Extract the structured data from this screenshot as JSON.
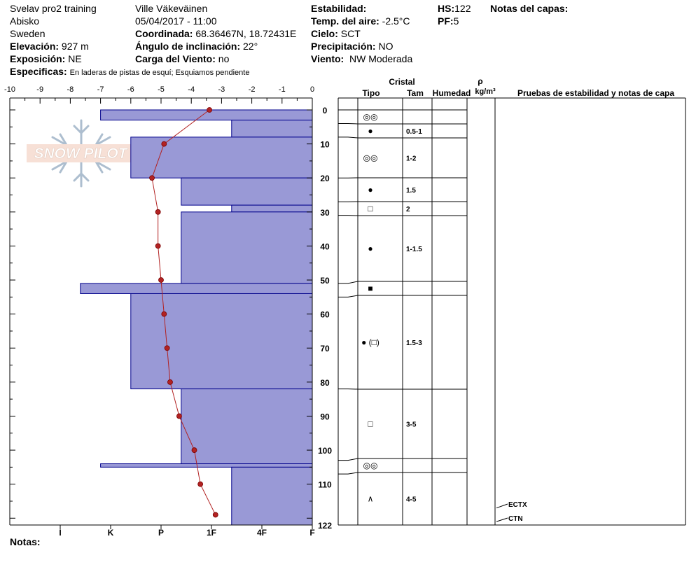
{
  "header": {
    "col1": [
      "Svelav pro2 training",
      "Abisko",
      "Sweden"
    ],
    "observer": "Ville Väkeväinen",
    "datetime": "05/04/2017 - 11:00",
    "elevation_label": "Elevación:",
    "elevation": "927 m",
    "aspect_label": "Exposición:",
    "aspect": "NE",
    "specifics_label": "Especificas:",
    "specifics": "En laderas de pistas de esquí; Esquiamos pendiente",
    "coord_label": "Coordinada:",
    "coord": "68.36467N, 18.72431E",
    "slope_label": "Ángulo de inclinación:",
    "slope": "22°",
    "wind_load_label": "Carga del Viento:",
    "wind_load": "no",
    "stability_label": "Estabilidad:",
    "air_temp_label": "Temp. del aire:",
    "air_temp": "-2.5°C",
    "sky_label": "Cielo:",
    "sky": "SCT",
    "precip_label": "Precipitación:",
    "precip": "NO",
    "wind_label": "Viento:",
    "wind": "NW Moderada",
    "hs_label": "HS:",
    "hs": "122",
    "pf_label": "PF:",
    "pf": "5",
    "layer_notes_label": "Notas del capas:"
  },
  "watermark": {
    "text": "SNOW PILOT"
  },
  "footer": {
    "notes_label": "Notas:"
  },
  "table_headers": {
    "crystal": "Cristal",
    "type": "Tipo",
    "size": "Tam",
    "moisture": "Humedad",
    "rho": "ρ",
    "density_unit": "kg/m³",
    "tests": "Pruebas de estabilidad y notas de capa"
  },
  "chart_data": {
    "type": "snow-profile",
    "temperature_axis": {
      "ticks": [
        -10,
        -9,
        -8,
        -7,
        -6,
        -5,
        -4,
        -3,
        -2,
        -1,
        0
      ],
      "range": [
        -10,
        0
      ]
    },
    "hardness_axis": {
      "labels": [
        "I",
        "K",
        "P",
        "1F",
        "4F",
        "F"
      ],
      "values": [
        5,
        4,
        3,
        2,
        1,
        0
      ]
    },
    "depth_axis": {
      "ticks": [
        0,
        10,
        20,
        30,
        40,
        50,
        60,
        70,
        80,
        90,
        100,
        110
      ],
      "range": [
        0,
        122
      ],
      "bottom_label": "122"
    },
    "temperature_profile": [
      {
        "depth": 0,
        "temp": -3.4
      },
      {
        "depth": 10,
        "temp": -4.9
      },
      {
        "depth": 20,
        "temp": -5.3
      },
      {
        "depth": 30,
        "temp": -5.1
      },
      {
        "depth": 40,
        "temp": -5.1
      },
      {
        "depth": 50,
        "temp": -5.0
      },
      {
        "depth": 60,
        "temp": -4.9
      },
      {
        "depth": 70,
        "temp": -4.8
      },
      {
        "depth": 80,
        "temp": -4.7
      },
      {
        "depth": 90,
        "temp": -4.4
      },
      {
        "depth": 100,
        "temp": -3.9
      },
      {
        "depth": 110,
        "temp": -3.7
      },
      {
        "depth": 119,
        "temp": -3.2
      }
    ],
    "hardness_profile": [
      {
        "top": 0,
        "bottom": 3,
        "hardness": 4.2
      },
      {
        "top": 3,
        "bottom": 8,
        "hardness": 1.6
      },
      {
        "top": 8,
        "bottom": 20,
        "hardness": 3.6
      },
      {
        "top": 20,
        "bottom": 28,
        "hardness": 2.6
      },
      {
        "top": 28,
        "bottom": 30,
        "hardness": 1.6
      },
      {
        "top": 30,
        "bottom": 51,
        "hardness": 2.6
      },
      {
        "top": 51,
        "bottom": 54,
        "hardness": 4.6
      },
      {
        "top": 54,
        "bottom": 82,
        "hardness": 3.6
      },
      {
        "top": 82,
        "bottom": 104,
        "hardness": 2.6
      },
      {
        "top": 104,
        "bottom": 105,
        "hardness": 4.2
      },
      {
        "top": 105,
        "bottom": 122,
        "hardness": 1.6
      }
    ],
    "layers": [
      {
        "top": 0,
        "bottom": 4,
        "grain": "◎◎",
        "size": ""
      },
      {
        "top": 4,
        "bottom": 8,
        "grain": "●",
        "size": "0.5-1"
      },
      {
        "top": 8,
        "bottom": 20,
        "grain": "◎◎",
        "size": "1-2"
      },
      {
        "top": 20,
        "bottom": 27,
        "grain": "●",
        "size": "1.5"
      },
      {
        "top": 27,
        "bottom": 31,
        "grain": "□",
        "size": "2"
      },
      {
        "top": 31,
        "bottom": 51,
        "grain": "●",
        "size": "1-1.5"
      },
      {
        "top": 51,
        "bottom": 55,
        "grain": "■",
        "size": ""
      },
      {
        "top": 55,
        "bottom": 82,
        "grain": "● (□)",
        "size": "1.5-3"
      },
      {
        "top": 82,
        "bottom": 103,
        "grain": "□",
        "size": "3-5"
      },
      {
        "top": 103,
        "bottom": 107,
        "grain": "◎◎",
        "size": ""
      },
      {
        "top": 107,
        "bottom": 122,
        "grain": "∧",
        "size": "4-5"
      }
    ],
    "tests": [
      {
        "depth": 117,
        "label": "ECTX"
      },
      {
        "depth": 121,
        "label": "CTN"
      }
    ],
    "colors": {
      "hardness_fill": "#9999d6",
      "hardness_stroke": "#00008b",
      "temperature": "#b22222"
    }
  }
}
